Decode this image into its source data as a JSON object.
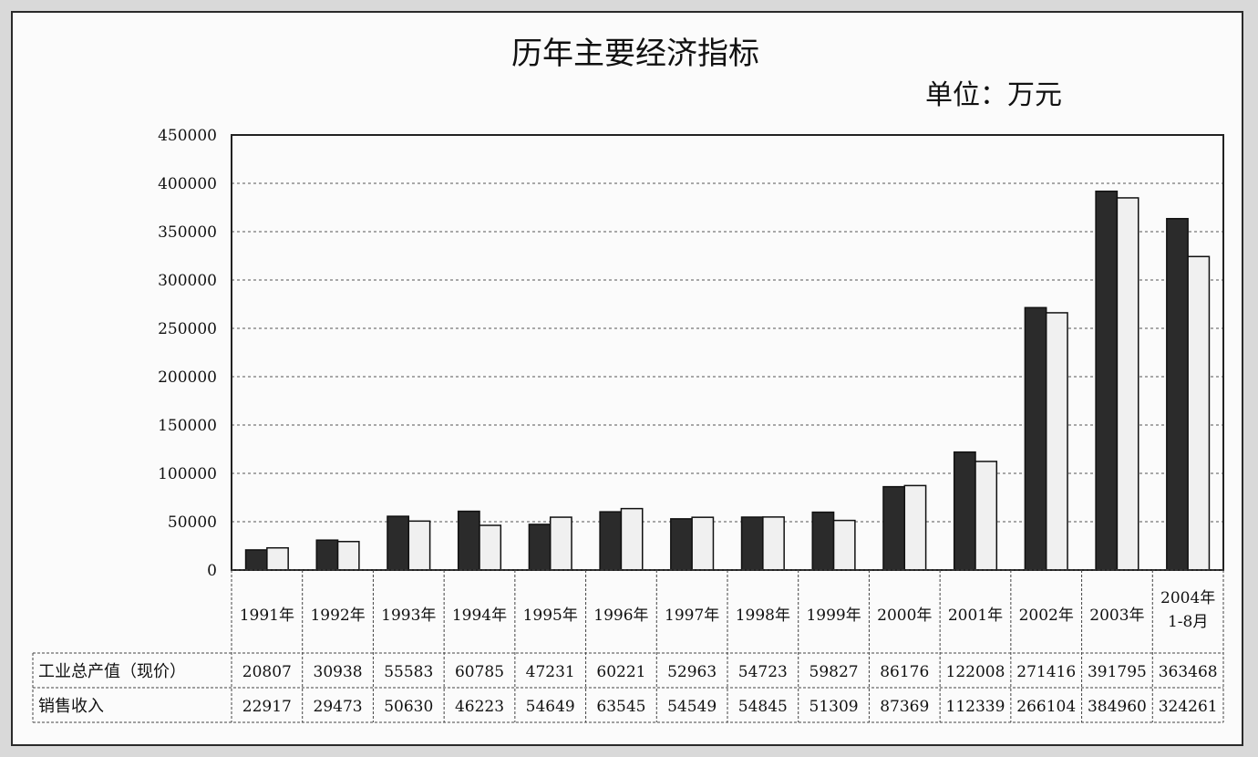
{
  "title": "历年主要经济指标",
  "unit": "单位：万元",
  "chart_data": {
    "type": "bar",
    "title": "历年主要经济指标",
    "unit": "单位：万元",
    "categories": [
      "1991年",
      "1992年",
      "1993年",
      "1994年",
      "1995年",
      "1996年",
      "1997年",
      "1998年",
      "1999年",
      "2000年",
      "2001年",
      "2002年",
      "2003年",
      "2004年 1-8月"
    ],
    "category_lines": [
      [
        "1991年"
      ],
      [
        "1992年"
      ],
      [
        "1993年"
      ],
      [
        "1994年"
      ],
      [
        "1995年"
      ],
      [
        "1996年"
      ],
      [
        "1997年"
      ],
      [
        "1998年"
      ],
      [
        "1999年"
      ],
      [
        "2000年"
      ],
      [
        "2001年"
      ],
      [
        "2002年"
      ],
      [
        "2003年"
      ],
      [
        "2004年",
        "1-8月"
      ]
    ],
    "series": [
      {
        "name": "工业总产值（现价）",
        "color": "#2b2b2b",
        "values": [
          20807,
          30938,
          55583,
          60785,
          47231,
          60221,
          52963,
          54723,
          59827,
          86176,
          122008,
          271416,
          391795,
          363468
        ]
      },
      {
        "name": "销售收入",
        "color": "#f0f0f0",
        "values": [
          22917,
          29473,
          50630,
          46223,
          54649,
          63545,
          54549,
          54845,
          51309,
          87369,
          112339,
          266104,
          384960,
          324261
        ]
      }
    ],
    "ylim": [
      0,
      450000
    ],
    "yticks": [
      0,
      50000,
      100000,
      150000,
      200000,
      250000,
      300000,
      350000,
      400000,
      450000
    ],
    "grid": true,
    "legend": "data-table-below"
  }
}
